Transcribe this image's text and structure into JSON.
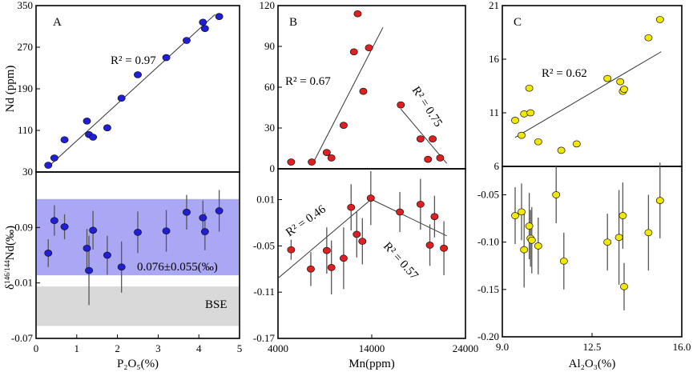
{
  "chart_data": [
    {
      "id": "A-top",
      "type": "scatter",
      "panel_label": "A",
      "xlim": [
        0,
        5
      ],
      "ylim": [
        30,
        350
      ],
      "yticks": [
        "30",
        "110",
        "190",
        "270",
        "350"
      ],
      "ylabel": "Nd (ppm)",
      "marker_color": "#1f1fd6",
      "r2_label": "R² = 0.97",
      "x": [
        0.3,
        0.45,
        0.7,
        1.25,
        1.3,
        1.4,
        1.75,
        2.1,
        2.5,
        3.2,
        3.7,
        4.1,
        4.15,
        4.5
      ],
      "y": [
        43,
        57,
        92,
        128,
        102,
        97,
        115,
        172,
        217,
        250,
        283,
        318,
        306,
        329
      ],
      "fit": [
        [
          0.3,
          40
        ],
        [
          4.4,
          333
        ]
      ]
    },
    {
      "id": "A-bottom",
      "type": "scatter",
      "xlim": [
        0,
        5
      ],
      "ylim": [
        -0.07,
        0.17
      ],
      "xticks": [
        "0",
        "1",
        "2",
        "3",
        "4",
        "5"
      ],
      "yticks": [
        "-0.07",
        "0.01",
        "0.09"
      ],
      "xlabel": "P₂O₅(%)",
      "ylabel_pre": "δ",
      "ylabel_sup": "146/144",
      "ylabel_post": "Nd(‰)",
      "marker_color": "#1f1fd6",
      "band": {
        "y0": 0.021,
        "y1": 0.131,
        "color": "#aaa7f5",
        "label": "0.076±0.055(‰)"
      },
      "bse": {
        "y0": -0.052,
        "y1": 0.005,
        "color": "#d9d9d9",
        "label": "BSE"
      },
      "x": [
        0.3,
        0.45,
        0.7,
        1.25,
        1.3,
        1.4,
        1.75,
        2.1,
        2.5,
        3.2,
        3.7,
        4.1,
        4.15,
        4.5
      ],
      "y": [
        0.053,
        0.1,
        0.091,
        0.06,
        0.028,
        0.086,
        0.05,
        0.033,
        0.083,
        0.085,
        0.112,
        0.104,
        0.084,
        0.114
      ],
      "err": [
        0.02,
        0.022,
        0.018,
        0.028,
        0.05,
        0.028,
        0.028,
        0.037,
        0.03,
        0.03,
        0.025,
        0.025,
        0.027,
        0.03
      ]
    },
    {
      "id": "B-top",
      "type": "scatter",
      "panel_label": "B",
      "xlim": [
        4000,
        24000
      ],
      "ylim": [
        0,
        120
      ],
      "yticks": [
        "0",
        "30",
        "60",
        "90",
        "120"
      ],
      "marker_color": "#e02020",
      "r2_labels": [
        "R² = 0.67",
        "R² = 0.75"
      ],
      "x": [
        5400,
        7600,
        9200,
        9700,
        11000,
        12100,
        12500,
        13100,
        13700,
        17100,
        19200,
        20000,
        20500,
        21300
      ],
      "y": [
        5,
        5,
        12,
        8,
        32,
        86,
        114,
        57,
        89,
        47,
        22,
        7,
        22,
        8
      ],
      "fits": [
        [
          [
            7800,
            5
          ],
          [
            15200,
            104
          ]
        ],
        [
          [
            17100,
            44
          ],
          [
            22000,
            4
          ]
        ]
      ]
    },
    {
      "id": "B-bottom",
      "type": "scatter",
      "xlim": [
        4000,
        24000
      ],
      "ylim": [
        -0.17,
        0.05
      ],
      "xticks": [
        "4000",
        "14000",
        "24000"
      ],
      "yticks": [
        "-0.17",
        "-0.11",
        "-0.05",
        "0.01"
      ],
      "xlabel": "Mn(ppm)",
      "marker_color": "#e02020",
      "r2_labels": [
        "R² = 0.46",
        "R² = 0.57"
      ],
      "x": [
        5400,
        7500,
        9200,
        9700,
        11000,
        11800,
        12400,
        13000,
        13900,
        17000,
        19200,
        20200,
        20700,
        21700
      ],
      "y": [
        -0.055,
        -0.08,
        -0.056,
        -0.078,
        -0.066,
        0.0,
        -0.035,
        -0.044,
        0.012,
        -0.006,
        0.004,
        -0.049,
        -0.012,
        -0.053
      ],
      "err": [
        0.013,
        0.022,
        0.03,
        0.035,
        0.04,
        0.03,
        0.03,
        0.03,
        0.035,
        0.026,
        0.033,
        0.027,
        0.027,
        0.035
      ],
      "fits": [
        [
          [
            4000,
            -0.092
          ],
          [
            13900,
            0.01
          ]
        ],
        [
          [
            14200,
            0.009
          ],
          [
            22000,
            -0.037
          ]
        ]
      ]
    },
    {
      "id": "C-top",
      "type": "scatter",
      "panel_label": "C",
      "xlim": [
        9,
        16
      ],
      "ylim": [
        6,
        21
      ],
      "yticks": [
        "6",
        "11",
        "16",
        "21"
      ],
      "marker_color": "#f0e800",
      "r2_label": "R² = 0.62",
      "x": [
        9.5,
        9.75,
        9.85,
        10.05,
        10.1,
        10.4,
        11.3,
        11.9,
        13.1,
        13.6,
        13.7,
        13.75,
        14.7,
        15.15
      ],
      "y": [
        10.3,
        8.9,
        10.9,
        13.3,
        11.0,
        8.3,
        7.5,
        8.1,
        14.2,
        13.9,
        13.0,
        13.2,
        18.0,
        19.7
      ],
      "fit": [
        [
          9.5,
          8.7
        ],
        [
          15.2,
          16.7
        ]
      ]
    },
    {
      "id": "C-bottom",
      "type": "scatter",
      "xlim": [
        9,
        16
      ],
      "ylim": [
        -0.2,
        -0.02
      ],
      "xticks": [
        "9.0",
        "12.5",
        "16.0"
      ],
      "yticks": [
        "-0.20",
        "-0.15",
        "-0.10",
        "-0.05"
      ],
      "xlabel": "Al₂O₃(%)",
      "marker_color": "#f0e800",
      "x": [
        9.5,
        9.75,
        9.85,
        10.05,
        10.1,
        10.15,
        10.4,
        11.1,
        11.4,
        13.1,
        13.55,
        13.7,
        13.75,
        14.7,
        15.15
      ],
      "y": [
        -0.072,
        -0.068,
        -0.108,
        -0.083,
        -0.096,
        -0.098,
        -0.104,
        -0.05,
        -0.12,
        -0.1,
        -0.095,
        -0.072,
        -0.147,
        -0.09,
        -0.056
      ],
      "err": [
        0.03,
        0.03,
        0.04,
        0.035,
        0.03,
        0.035,
        0.03,
        0.03,
        0.03,
        0.03,
        0.05,
        0.035,
        0.025,
        0.04,
        0.04
      ]
    }
  ]
}
